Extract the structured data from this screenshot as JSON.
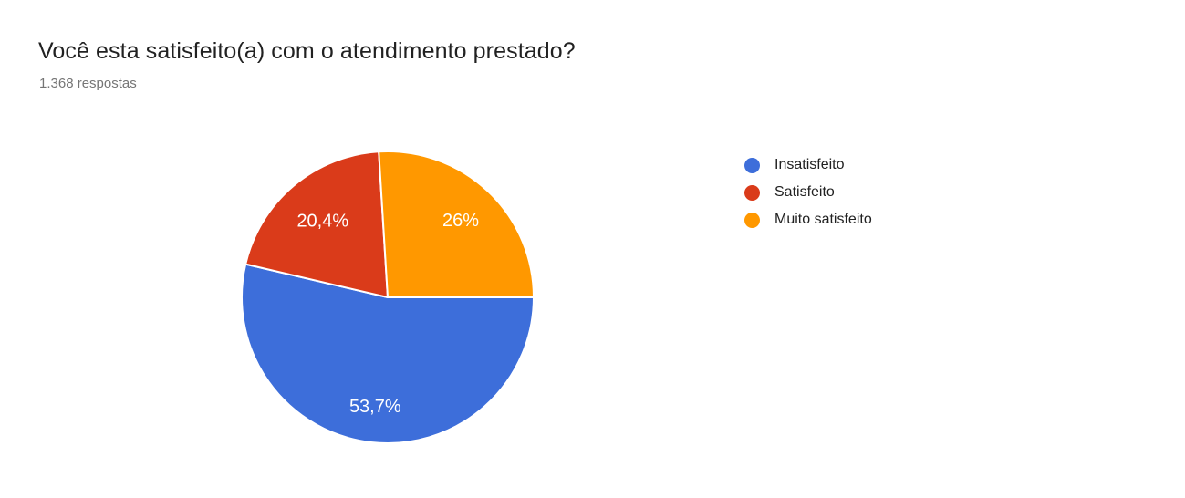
{
  "header": {
    "title": "Você esta satisfeito(a) com o atendimento prestado?",
    "subtitle": "1.368 respostas"
  },
  "chart_data": {
    "type": "pie",
    "title": "Você esta satisfeito(a) com o atendimento prestado?",
    "subtitle": "1.368 respostas",
    "total_responses": 1368,
    "categories": [
      "Insatisfeito",
      "Satisfeito",
      "Muito satisfeito"
    ],
    "values_percent": [
      53.7,
      20.4,
      26
    ],
    "slice_labels": [
      "53,7%",
      "20,4%",
      "26%"
    ],
    "colors": [
      "#3D6EDA",
      "#DA3B1A",
      "#FF9800"
    ],
    "slice_label_color": "#ffffff",
    "legend_position": "right",
    "legend_text_color": "#212121",
    "start_angle_deg": 90,
    "direction": "clockwise"
  }
}
